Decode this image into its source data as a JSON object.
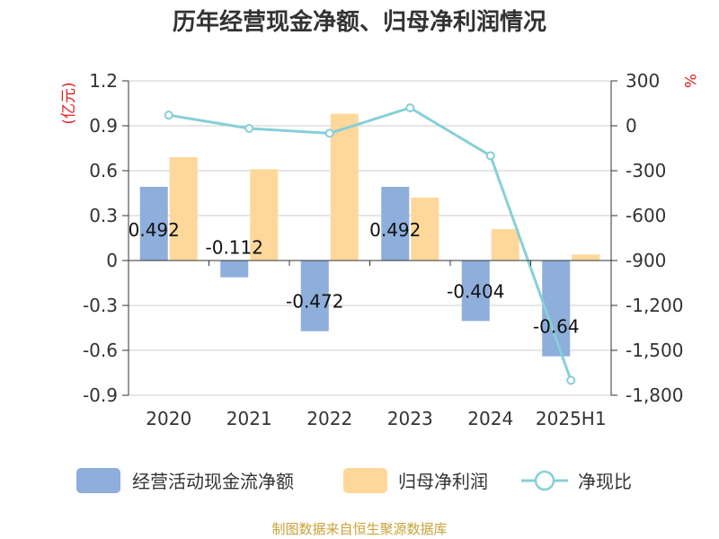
{
  "title": "历年经营现金净额、归母净利润情况",
  "source": "制图数据来自恒生聚源数据库",
  "colors": {
    "cash": "#8eaedb",
    "profit": "#fdd89a",
    "ratio": "#86d0d6",
    "grid": "#cccccc",
    "axis": "#333333",
    "unit": "#e02020",
    "source": "#c8a23a"
  },
  "chart_data": {
    "type": "bar",
    "title": "历年经营现金净额、归母净利润情况",
    "categories": [
      "2020",
      "2021",
      "2022",
      "2023",
      "2024",
      "2025H1"
    ],
    "left_axis": {
      "unit": "(亿元)",
      "ylim": [
        -0.9,
        1.2
      ],
      "ticks": [
        "1.2",
        "0.9",
        "0.6",
        "0.3",
        "0",
        "-0.3",
        "-0.6",
        "-0.9"
      ],
      "tick_values": [
        1.2,
        0.9,
        0.6,
        0.3,
        0,
        -0.3,
        -0.6,
        -0.9
      ]
    },
    "right_axis": {
      "unit": "%",
      "ylim": [
        -1800,
        300
      ],
      "ticks": [
        "300",
        "0",
        "-300",
        "-600",
        "-900",
        "-1,200",
        "-1,500",
        "-1,800"
      ],
      "tick_values": [
        300,
        0,
        -300,
        -600,
        -900,
        -1200,
        -1500,
        -1800
      ]
    },
    "series": [
      {
        "name": "经营活动现金流净额",
        "type": "bar",
        "axis": "left",
        "values": [
          0.492,
          -0.112,
          -0.472,
          0.492,
          -0.404,
          -0.64
        ],
        "labels": [
          "0.492",
          "-0.112",
          "-0.472",
          "0.492",
          "-0.404",
          "-0.64"
        ]
      },
      {
        "name": "归母净利润",
        "type": "bar",
        "axis": "left",
        "values": [
          0.69,
          0.61,
          0.98,
          0.42,
          0.21,
          0.04
        ]
      },
      {
        "name": "净现比",
        "type": "line",
        "axis": "right",
        "values": [
          71,
          -18,
          -50,
          120,
          -200,
          -1700
        ]
      }
    ],
    "grid": true,
    "legend_position": "bottom"
  }
}
